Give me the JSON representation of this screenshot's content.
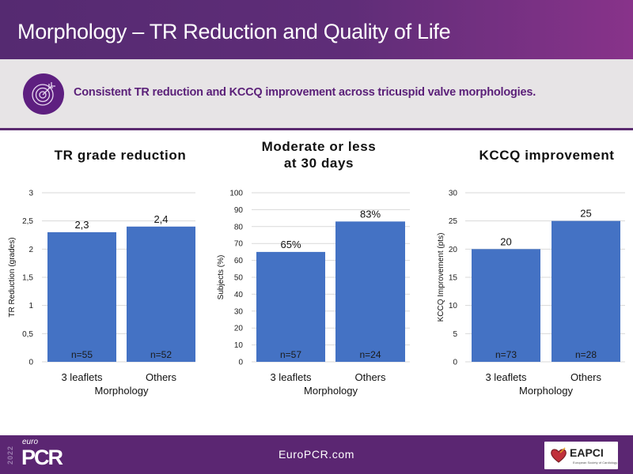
{
  "header": {
    "title": "Morphology – TR Reduction and Quality of Life"
  },
  "banner": {
    "icon": "target-icon",
    "text": "Consistent TR reduction and KCCQ improvement across tricuspid valve morphologies."
  },
  "colors": {
    "header_start": "#552a71",
    "header_end": "#88338a",
    "banner_bg": "#e7e4e6",
    "banner_text": "#5b2079",
    "bar": "#4472c4",
    "grid": "#d9d9d9",
    "footer_bg": "#5b2672"
  },
  "chart_data": [
    {
      "type": "bar",
      "title": "TR grade reduction",
      "title_lines": [
        "TR grade reduction"
      ],
      "xlabel": "Morphology",
      "ylabel": "TR Reduction (grades)",
      "categories": [
        "3 leaflets",
        "Others"
      ],
      "values": [
        2.3,
        2.4
      ],
      "value_labels": [
        "2,3",
        "2,4"
      ],
      "n_labels": [
        "n=55",
        "n=52"
      ],
      "ylim": [
        0,
        3
      ],
      "yticks": [
        0,
        0.5,
        1,
        1.5,
        2,
        2.5,
        3
      ],
      "ytick_labels": [
        "0",
        "0,5",
        "1",
        "1,5",
        "2",
        "2,5",
        "3"
      ],
      "grid": true,
      "legend": "none"
    },
    {
      "type": "bar",
      "title": "Moderate or less at 30 days",
      "title_lines": [
        "Moderate or less",
        "at 30 days"
      ],
      "xlabel": "Morphology",
      "ylabel": "Subjects (%)",
      "categories": [
        "3 leaflets",
        "Others"
      ],
      "values": [
        65,
        83
      ],
      "value_labels": [
        "65%",
        "83%"
      ],
      "n_labels": [
        "n=57",
        "n=24"
      ],
      "ylim": [
        0,
        100
      ],
      "yticks": [
        0,
        10,
        20,
        30,
        40,
        50,
        60,
        70,
        80,
        90,
        100
      ],
      "ytick_labels": [
        "0",
        "10",
        "20",
        "30",
        "40",
        "50",
        "60",
        "70",
        "80",
        "90",
        "100"
      ],
      "grid": true,
      "legend": "none"
    },
    {
      "type": "bar",
      "title": "KCCQ improvement",
      "title_lines": [
        "KCCQ improvement"
      ],
      "xlabel": "Morphology",
      "ylabel": "KCCQ Improvement (pts)",
      "categories": [
        "3 leaflets",
        "Others"
      ],
      "values": [
        20,
        25
      ],
      "value_labels": [
        "20",
        "25"
      ],
      "n_labels": [
        "n=73",
        "n=28"
      ],
      "ylim": [
        0,
        30
      ],
      "yticks": [
        0,
        5,
        10,
        15,
        20,
        25,
        30
      ],
      "ytick_labels": [
        "0",
        "5",
        "10",
        "15",
        "20",
        "25",
        "30"
      ],
      "grid": true,
      "legend": "none"
    }
  ],
  "footer": {
    "link": "EuroPCR.com",
    "left_logo": {
      "year": "2022",
      "prefix": "euro",
      "name": "PCR"
    },
    "right_logo": {
      "name": "EAPCI",
      "subtitle": "European Society of Cardiology"
    }
  }
}
